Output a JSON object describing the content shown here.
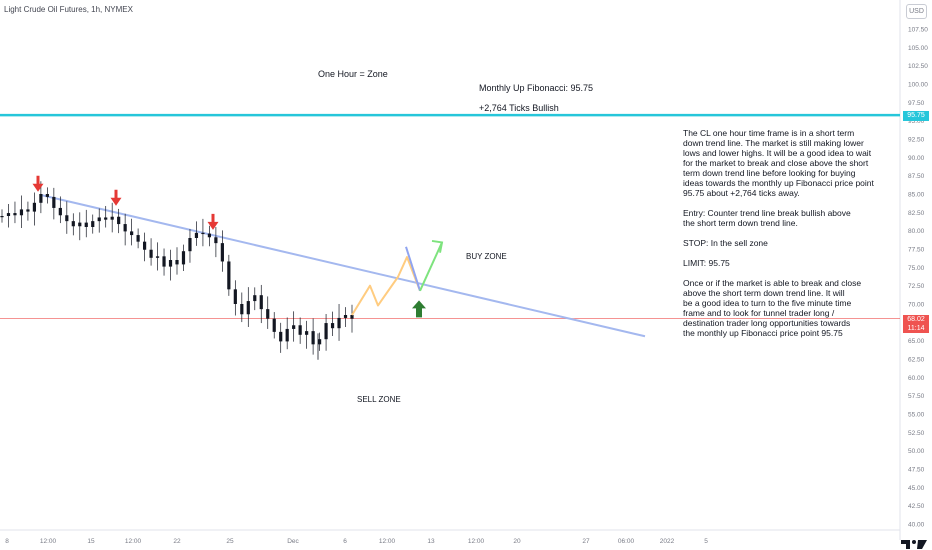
{
  "symbol_title": "Light Crude Oil Futures, 1h, NYMEX",
  "currency_badge": "USD",
  "annotations": {
    "zone_title": "One Hour = Zone",
    "fib_label": "Monthly Up Fibonacci: 95.75",
    "ticks_label": "+2,764 Ticks Bullish",
    "buy_zone": "BUY ZONE",
    "sell_zone": "SELL ZONE"
  },
  "description": [
    [
      "The CL one hour time frame is in a short term",
      "down trend line. The market is still making lower",
      "lows and lower highs. It will be a good idea to wait",
      "for the market to break and close above the short",
      "term down trend line before looking for buying",
      "ideas towards the monthly up Fibonacci price point",
      "95.75 about +2,764 ticks away."
    ],
    [
      "Entry: Counter trend line break bullish above",
      "the short term down trend line."
    ],
    [
      "STOP: In the sell zone"
    ],
    [
      "LIMIT: 95.75"
    ],
    [
      "Once or if the market is able to break and close",
      "above the short term down trend line. It will",
      "be a good idea to turn to the five minute time",
      "frame and to look for tunnel trader long /",
      "destination trader long opportunities towards",
      "the monthly up Fibonacci price point 95.75"
    ]
  ],
  "price_tags": {
    "fib_level": "95.75",
    "last_price": "68.02",
    "countdown": "11:14"
  },
  "colors": {
    "fib_line": "#26c6da",
    "trend_line": "#a4b8ef",
    "projection_path": "#ffcc80",
    "projection_up": "#7ee37e",
    "projection_down": "#90a4f0",
    "sell_arrow": "#e53935",
    "buy_arrow": "#2e7d32",
    "price_line": "#ef5350",
    "candles": "#131722"
  },
  "icons": {
    "sell_arrow": "red-down-arrow-icon",
    "buy_arrow": "green-up-arrow-icon",
    "logo": "tradingview-logo-icon"
  },
  "chart_data": {
    "type": "candlestick",
    "title": "Light Crude Oil Futures, 1h, NYMEX",
    "ylim": [
      38.5,
      111.5
    ],
    "y_ticks": [
      "107.50",
      "105.00",
      "102.50",
      "100.00",
      "97.50",
      "95.00",
      "92.50",
      "90.00",
      "87.50",
      "85.00",
      "82.50",
      "80.00",
      "77.50",
      "75.00",
      "72.50",
      "70.00",
      "67.50",
      "65.00",
      "62.50",
      "60.00",
      "57.50",
      "55.00",
      "52.50",
      "50.00",
      "47.50",
      "45.00",
      "42.50",
      "40.00"
    ],
    "x_ticks": [
      "8",
      "12:00",
      "15",
      "12:00",
      "22",
      "25",
      "Dec",
      "6",
      "12:00",
      "13",
      "12:00",
      "20",
      "27",
      "06:00",
      "2022",
      "5"
    ],
    "price_series": [
      [
        "8",
        82.0
      ],
      [
        "8",
        82.4
      ],
      [
        "8",
        82.1
      ],
      [
        "8",
        82.9
      ],
      [
        "8",
        82.6
      ],
      [
        "12:00",
        83.8
      ],
      [
        "12:00",
        85.0
      ],
      [
        "12:00",
        84.6
      ],
      [
        "12:00",
        83.1
      ],
      [
        "12:00",
        82.1
      ],
      [
        "12:00",
        81.3
      ],
      [
        "12:00",
        80.6
      ],
      [
        "15",
        81.1
      ],
      [
        "15",
        80.5
      ],
      [
        "15",
        81.3
      ],
      [
        "15",
        81.8
      ],
      [
        "12:00",
        81.5
      ],
      [
        "12:00",
        81.9
      ],
      [
        "12:00",
        80.9
      ],
      [
        "12:00",
        79.9
      ],
      [
        "12:00",
        79.4
      ],
      [
        "12:00",
        78.5
      ],
      [
        "22",
        77.4
      ],
      [
        "22",
        76.3
      ],
      [
        "22",
        76.5
      ],
      [
        "22",
        75.1
      ],
      [
        "22",
        76.0
      ],
      [
        "22",
        75.4
      ],
      [
        "22",
        77.2
      ],
      [
        "25",
        79.0
      ],
      [
        "25",
        79.7
      ],
      [
        "25",
        79.6
      ],
      [
        "25",
        79.1
      ],
      [
        "25",
        78.3
      ],
      [
        "25",
        75.8
      ],
      [
        "25",
        72.0
      ],
      [
        "25",
        70.0
      ],
      [
        "25",
        68.6
      ],
      [
        "25",
        70.4
      ],
      [
        "25",
        71.2
      ],
      [
        "Dec",
        69.3
      ],
      [
        "Dec",
        68.0
      ],
      [
        "Dec",
        66.2
      ],
      [
        "Dec",
        64.9
      ],
      [
        "Dec",
        66.6
      ],
      [
        "Dec",
        67.1
      ],
      [
        "Dec",
        65.8
      ],
      [
        "Dec",
        66.3
      ],
      [
        "Dec",
        64.5
      ],
      [
        "Dec",
        65.2
      ],
      [
        "6",
        67.4
      ],
      [
        "6",
        66.7
      ],
      [
        "6",
        68.1
      ],
      [
        "6",
        68.5
      ],
      [
        "6",
        68.0
      ]
    ],
    "series": [
      {
        "values": [
          [
            "8",
            82.0
          ],
          [
            "12:00",
            85.0
          ],
          [
            "22",
            75.4
          ],
          [
            "25",
            79.7
          ],
          [
            "Dec",
            64.5
          ],
          [
            "6",
            68.0
          ]
        ]
      }
    ],
    "horizontal_lines": [
      {
        "label": "Monthly Up Fibonacci: 95.75",
        "value": 95.75
      },
      {
        "label": "68.02",
        "value": 68.02
      }
    ],
    "trend_line": [
      [
        84.9,
        40
      ],
      [
        65.6,
        645
      ]
    ],
    "projection": {
      "x": [
        352,
        370,
        378,
        398,
        407,
        420,
        442
      ],
      "y": [
        68.5,
        72.5,
        69.8,
        73.7,
        76.4,
        71.8,
        78.4
      ]
    },
    "sell_arrows_at": [
      85.3,
      83.4,
      80.1
    ],
    "buy_arrow_at": 70.5,
    "grid": false
  },
  "logo_text": "TV"
}
